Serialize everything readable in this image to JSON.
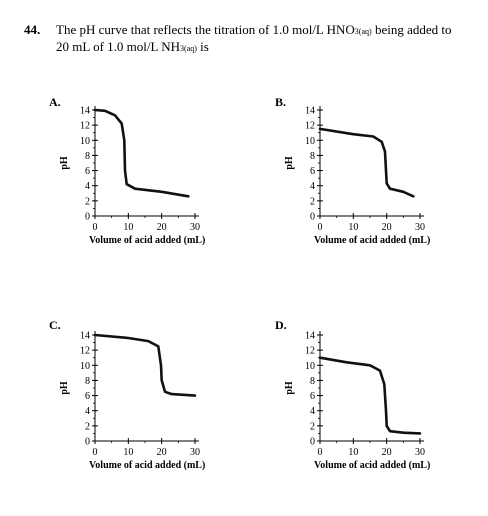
{
  "question": {
    "number": "44.",
    "line1_pre": "The pH curve that reflects the titration of 1.0 mol/L HNO",
    "line1_sub1": "3(aq)",
    "line1_post": " being added to",
    "line2_pre": "20 mL of 1.0 mol/L NH",
    "line2_sub": "3(aq)",
    "line2_post": " is"
  },
  "chart_data": [
    {
      "type": "line",
      "option": "A.",
      "xlabel": "Volume of acid added (mL)",
      "ylabel": "pH",
      "x_ticks": [
        "0",
        "10",
        "20",
        "30"
      ],
      "y_ticks": [
        "0",
        "2",
        "4",
        "6",
        "8",
        "10",
        "12",
        "14"
      ],
      "xlim": [
        0,
        30
      ],
      "ylim": [
        0,
        14
      ],
      "points": [
        [
          0,
          14
        ],
        [
          3,
          13.9
        ],
        [
          6,
          13.3
        ],
        [
          8,
          12.2
        ],
        [
          8.8,
          10
        ],
        [
          9,
          6
        ],
        [
          9.5,
          4.2
        ],
        [
          12,
          3.6
        ],
        [
          20,
          3.2
        ],
        [
          28,
          2.6
        ]
      ]
    },
    {
      "type": "line",
      "option": "B.",
      "xlabel": "Volume of acid added (mL)",
      "ylabel": "pH",
      "x_ticks": [
        "0",
        "10",
        "20",
        "30"
      ],
      "y_ticks": [
        "0",
        "2",
        "4",
        "6",
        "8",
        "10",
        "12",
        "14"
      ],
      "xlim": [
        0,
        30
      ],
      "ylim": [
        0,
        14
      ],
      "points": [
        [
          0,
          11.5
        ],
        [
          10,
          10.8
        ],
        [
          16,
          10.5
        ],
        [
          18.5,
          9.8
        ],
        [
          19.5,
          8.5
        ],
        [
          19.8,
          6
        ],
        [
          20,
          4.3
        ],
        [
          21,
          3.6
        ],
        [
          25,
          3.2
        ],
        [
          28,
          2.6
        ]
      ]
    },
    {
      "type": "line",
      "option": "C.",
      "xlabel": "Volume of acid added (mL)",
      "ylabel": "pH",
      "x_ticks": [
        "0",
        "10",
        "20",
        "30"
      ],
      "y_ticks": [
        "0",
        "2",
        "4",
        "6",
        "8",
        "10",
        "12",
        "14"
      ],
      "xlim": [
        0,
        30
      ],
      "ylim": [
        0,
        14
      ],
      "points": [
        [
          0,
          14
        ],
        [
          10,
          13.6
        ],
        [
          16,
          13.2
        ],
        [
          19,
          12.5
        ],
        [
          19.8,
          10
        ],
        [
          20,
          8
        ],
        [
          21,
          6.5
        ],
        [
          23,
          6.2
        ],
        [
          30,
          6.0
        ]
      ]
    },
    {
      "type": "line",
      "option": "D.",
      "xlabel": "Volume of acid added (mL)",
      "ylabel": "pH",
      "x_ticks": [
        "0",
        "10",
        "20",
        "30"
      ],
      "y_ticks": [
        "0",
        "2",
        "4",
        "6",
        "8",
        "10",
        "12",
        "14"
      ],
      "xlim": [
        0,
        30
      ],
      "ylim": [
        0,
        14
      ],
      "points": [
        [
          0,
          11
        ],
        [
          8,
          10.4
        ],
        [
          15,
          10
        ],
        [
          18,
          9.3
        ],
        [
          19.3,
          7.5
        ],
        [
          19.8,
          4
        ],
        [
          20,
          2
        ],
        [
          21,
          1.3
        ],
        [
          25,
          1.1
        ],
        [
          30,
          1.0
        ]
      ]
    }
  ]
}
